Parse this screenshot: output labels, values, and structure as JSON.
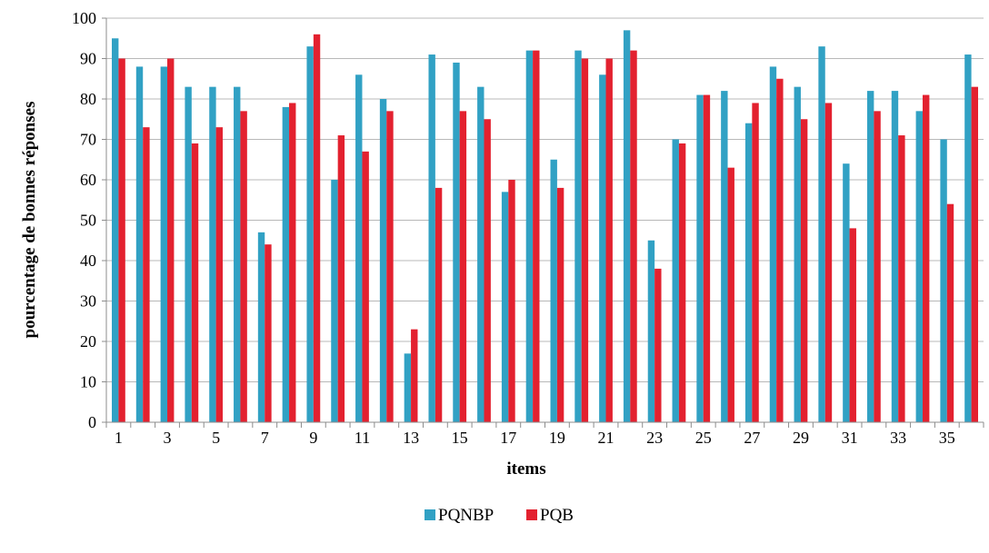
{
  "chart_data": {
    "type": "bar",
    "title": "",
    "xlabel": "items",
    "ylabel": "pourcentage de bonnes réponses",
    "ylim": [
      0,
      100
    ],
    "ytick_step": 10,
    "grid": true,
    "legend_position": "bottom",
    "categories": [
      "1",
      "2",
      "3",
      "4",
      "5",
      "6",
      "7",
      "8",
      "9",
      "10",
      "11",
      "12",
      "13",
      "14",
      "15",
      "16",
      "17",
      "18",
      "19",
      "20",
      "21",
      "22",
      "23",
      "24",
      "25",
      "26",
      "27",
      "28",
      "29",
      "30",
      "31",
      "32",
      "33",
      "34",
      "35",
      "36"
    ],
    "x_tick_labels": [
      "1",
      "",
      "3",
      "",
      "5",
      "",
      "7",
      "",
      "9",
      "",
      "11",
      "",
      "13",
      "",
      "15",
      "",
      "17",
      "",
      "19",
      "",
      "21",
      "",
      "23",
      "",
      "25",
      "",
      "27",
      "",
      "29",
      "",
      "31",
      "",
      "33",
      "",
      "35",
      ""
    ],
    "series": [
      {
        "name": "PQNBP",
        "color": "#31a1c4",
        "values": [
          95,
          88,
          88,
          83,
          83,
          83,
          47,
          78,
          93,
          60,
          86,
          80,
          17,
          91,
          89,
          83,
          57,
          92,
          65,
          92,
          86,
          97,
          45,
          70,
          81,
          82,
          74,
          88,
          83,
          93,
          64,
          82,
          82,
          77,
          70,
          91
        ]
      },
      {
        "name": "PQB",
        "color": "#e3212f",
        "values": [
          90,
          73,
          90,
          69,
          73,
          77,
          44,
          79,
          96,
          71,
          67,
          77,
          23,
          58,
          77,
          75,
          60,
          92,
          58,
          90,
          90,
          92,
          38,
          69,
          81,
          63,
          79,
          85,
          75,
          79,
          48,
          77,
          71,
          81,
          54,
          83
        ]
      }
    ]
  }
}
